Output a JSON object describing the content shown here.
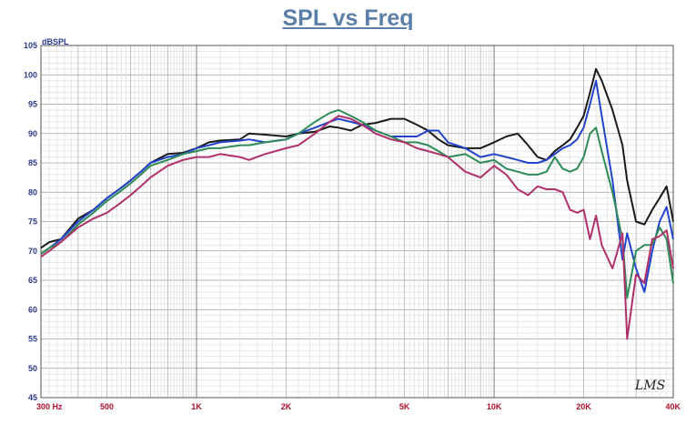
{
  "chart_data": {
    "type": "line",
    "title": "SPL vs Freq",
    "ylabel": "dBSPL",
    "xlabel": "",
    "x_scale": "log",
    "xlim": [
      300,
      40000
    ],
    "ylim": [
      45,
      105
    ],
    "grid": true,
    "y_ticks": [
      "105",
      "100",
      "95",
      "90",
      "85",
      "80",
      "75",
      "70",
      "65",
      "60",
      "55",
      "50",
      "45"
    ],
    "x_ticks": [
      {
        "value": 300,
        "label": "300  Hz"
      },
      {
        "value": 500,
        "label": "500"
      },
      {
        "value": 1000,
        "label": "1K"
      },
      {
        "value": 2000,
        "label": "2K"
      },
      {
        "value": 5000,
        "label": "5K"
      },
      {
        "value": 10000,
        "label": "10K"
      },
      {
        "value": 20000,
        "label": "20K"
      },
      {
        "value": 40000,
        "label": "40K"
      }
    ],
    "watermark": "LMS",
    "series": [
      {
        "color": "#1a1a1a",
        "x": [
          300,
          320,
          350,
          400,
          450,
          500,
          550,
          600,
          650,
          700,
          800,
          900,
          1000,
          1100,
          1200,
          1400,
          1500,
          1700,
          2000,
          2200,
          2500,
          2800,
          3000,
          3300,
          3600,
          4000,
          4500,
          5000,
          5500,
          6000,
          6500,
          7000,
          8000,
          9000,
          10000,
          11000,
          12000,
          13000,
          14000,
          15000,
          16000,
          17000,
          18000,
          19000,
          20000,
          21000,
          22000,
          23000,
          25000,
          27000,
          28000,
          30000,
          32000,
          34000,
          36000,
          38000,
          40000
        ],
        "y": [
          70.5,
          71.5,
          72,
          75.5,
          77,
          79,
          80.5,
          82,
          83.5,
          85,
          86.5,
          86.7,
          87.5,
          88.5,
          88.8,
          89,
          90,
          89.8,
          89.5,
          90,
          90.3,
          91.2,
          91,
          90.5,
          91.5,
          91.8,
          92.5,
          92.5,
          91.5,
          90.5,
          89,
          88,
          87.5,
          87.5,
          88.5,
          89.5,
          90,
          88,
          86,
          85.5,
          87,
          88,
          89,
          91,
          93,
          97,
          101,
          99,
          94,
          88,
          82,
          75,
          74.5,
          77,
          79,
          81,
          75
        ]
      },
      {
        "color": "#2244cc",
        "x": [
          300,
          320,
          350,
          400,
          450,
          500,
          550,
          600,
          650,
          700,
          800,
          900,
          1000,
          1100,
          1200,
          1400,
          1500,
          1700,
          2000,
          2200,
          2500,
          2800,
          3000,
          3300,
          3600,
          4000,
          4500,
          5000,
          5500,
          6000,
          6500,
          7000,
          8000,
          9000,
          10000,
          11000,
          12000,
          13000,
          14000,
          15000,
          16000,
          17000,
          18000,
          19000,
          20000,
          21000,
          22000,
          23000,
          25000,
          27000,
          28000,
          30000,
          32000,
          34000,
          36000,
          38000,
          40000
        ],
        "y": [
          69.5,
          70.5,
          72,
          75,
          77,
          79,
          80.5,
          82,
          83.5,
          85,
          86,
          86.5,
          87.5,
          88,
          88.5,
          88.8,
          89,
          88.5,
          89,
          90,
          91,
          92,
          92.5,
          92,
          91.5,
          90.5,
          89.5,
          89.5,
          89.5,
          90.5,
          90.5,
          88.5,
          87.5,
          86,
          86.5,
          86,
          85.5,
          85,
          85,
          85.5,
          86.5,
          87.5,
          88,
          89,
          91,
          95,
          99,
          93,
          82,
          68.5,
          73,
          67,
          63,
          70,
          75,
          77.5,
          72
        ]
      },
      {
        "color": "#2e8b57",
        "x": [
          300,
          320,
          350,
          400,
          450,
          500,
          550,
          600,
          650,
          700,
          800,
          900,
          1000,
          1100,
          1200,
          1400,
          1500,
          1700,
          2000,
          2200,
          2500,
          2800,
          3000,
          3300,
          3600,
          4000,
          4500,
          5000,
          5500,
          6000,
          6500,
          7000,
          8000,
          9000,
          10000,
          11000,
          12000,
          13000,
          14000,
          15000,
          16000,
          17000,
          18000,
          19000,
          20000,
          21000,
          22000,
          23000,
          25000,
          27000,
          28000,
          30000,
          32000,
          34000,
          36000,
          38000,
          40000
        ],
        "y": [
          69.5,
          70.5,
          71.5,
          74.5,
          76.5,
          78.5,
          80,
          81.5,
          83,
          84.5,
          85.5,
          86.5,
          87,
          87.5,
          87.5,
          88,
          88,
          88.5,
          89,
          90,
          92,
          93.5,
          94,
          93,
          92,
          90.5,
          89.5,
          88.5,
          88.5,
          88,
          87,
          86,
          86.5,
          85,
          85.5,
          84,
          83.5,
          83,
          83,
          83.5,
          86,
          84,
          83.5,
          84,
          86,
          90,
          91,
          87,
          80,
          72,
          62,
          70,
          71,
          71,
          74,
          72,
          64.5
        ]
      },
      {
        "color": "#b0306a",
        "x": [
          300,
          320,
          350,
          400,
          450,
          500,
          550,
          600,
          650,
          700,
          800,
          900,
          1000,
          1100,
          1200,
          1400,
          1500,
          1700,
          2000,
          2200,
          2500,
          2800,
          3000,
          3300,
          3600,
          4000,
          4500,
          5000,
          5500,
          6000,
          6500,
          7000,
          8000,
          9000,
          10000,
          11000,
          12000,
          13000,
          14000,
          15000,
          16000,
          17000,
          18000,
          19000,
          20000,
          21000,
          22000,
          23000,
          25000,
          27000,
          28000,
          30000,
          32000,
          34000,
          36000,
          38000,
          40000
        ],
        "y": [
          69,
          70,
          71.5,
          74,
          75.5,
          76.5,
          78,
          79.5,
          81,
          82.5,
          84.5,
          85.5,
          86,
          86,
          86.5,
          86,
          85.5,
          86.5,
          87.5,
          88,
          90,
          92,
          93,
          92.5,
          91.5,
          90,
          89,
          88.5,
          87.5,
          87,
          86.5,
          86,
          83.5,
          82.5,
          84.5,
          83,
          80.5,
          79.5,
          81,
          80.5,
          80.5,
          80,
          77,
          76.5,
          77,
          72,
          76,
          71,
          67,
          73,
          55,
          66,
          64.5,
          72,
          72.5,
          73.5,
          67
        ]
      }
    ]
  }
}
